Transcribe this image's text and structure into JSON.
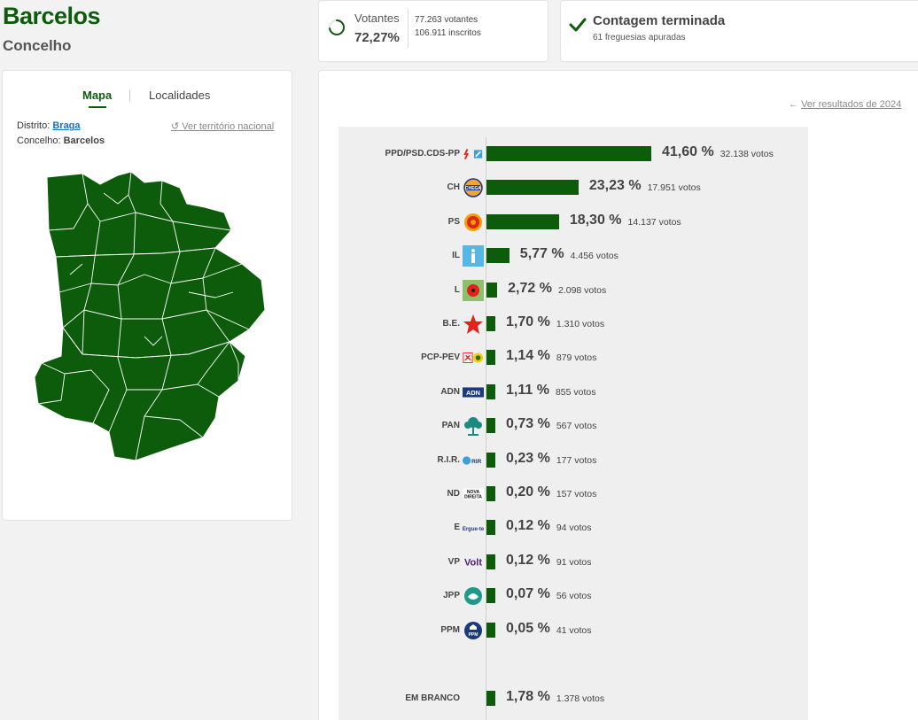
{
  "header": {
    "title": "Barcelos",
    "subtitle": "Concelho"
  },
  "turnout": {
    "label": "Votantes",
    "percent": "72,27%",
    "percent_value": 0.7227,
    "voters": "77.263 votantes",
    "registered": "106.911 inscritos"
  },
  "counting": {
    "title": "Contagem terminada",
    "subtitle": "61 freguesias apuradas"
  },
  "map_panel": {
    "tab_map": "Mapa",
    "tab_places": "Localidades",
    "district_label": "Distrito:",
    "district_value": "Braga",
    "council_label": "Concelho:",
    "council_value": "Barcelos",
    "national_link": "Ver território nacional",
    "map_color": "#0c5c0c"
  },
  "results_panel": {
    "previous_link": "Ver resultados de 2024",
    "bar_color": "#0c5c0c"
  },
  "chart_data": {
    "type": "bar",
    "orientation": "horizontal",
    "categories": [
      "PPD/PSD.CDS-PP",
      "CH",
      "PS",
      "IL",
      "L",
      "B.E.",
      "PCP-PEV",
      "ADN",
      "PAN",
      "R.I.R.",
      "ND",
      "E",
      "VP",
      "JPP",
      "PPM",
      "EM BRANCO"
    ],
    "values": [
      41.6,
      23.23,
      18.3,
      5.77,
      2.72,
      1.7,
      1.14,
      1.11,
      0.73,
      0.23,
      0.2,
      0.12,
      0.12,
      0.07,
      0.05,
      1.78
    ],
    "percent_labels": [
      "41,60 %",
      "23,23 %",
      "18,30 %",
      "5,77 %",
      "2,72 %",
      "1,70 %",
      "1,14 %",
      "1,11 %",
      "0,73 %",
      "0,23 %",
      "0,20 %",
      "0,12 %",
      "0,12 %",
      "0,07 %",
      "0,05 %",
      "1,78 %"
    ],
    "vote_labels": [
      "32.138 votos",
      "17.951 votos",
      "14.137 votos",
      "4.456 votos",
      "2.098 votos",
      "1.310 votos",
      "879 votos",
      "855 votos",
      "567 votos",
      "177 votos",
      "157 votos",
      "94 votos",
      "91 votos",
      "56 votos",
      "41 votos",
      "1.378 votos"
    ],
    "logos": [
      "psd-cds-logo",
      "chega-logo",
      "ps-logo",
      "il-logo",
      "livre-logo",
      "be-logo",
      "pcp-pev-logo",
      "adn-logo",
      "pan-logo",
      "rir-logo",
      "nd-logo",
      "ergue-te-logo",
      "volt-logo",
      "jpp-logo",
      "ppm-logo",
      ""
    ],
    "logo_texts": [
      "",
      "CHEGA",
      "",
      "",
      "",
      "",
      "",
      "ADN",
      "",
      "RIR",
      "NOVA DIREITA",
      "Ergue-te",
      "Volt",
      "",
      "PPM",
      ""
    ]
  }
}
